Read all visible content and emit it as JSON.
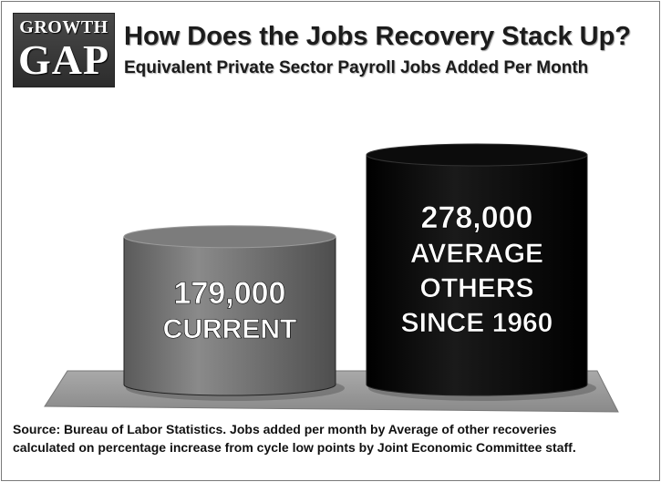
{
  "header": {
    "logo_line1": "GROWTH",
    "logo_line2": "GAP",
    "title": "How Does the Jobs Recovery Stack Up?",
    "subtitle": "Equivalent Private Sector Payroll Jobs Added Per Month"
  },
  "chart_data": {
    "type": "bar",
    "title": "How Does the Jobs Recovery Stack Up?",
    "subtitle": "Equivalent Private Sector Payroll Jobs Added Per Month",
    "categories": [
      "Current",
      "Average Others Since 1960"
    ],
    "values": [
      179000,
      278000
    ],
    "bars": [
      {
        "value_label": "179,000",
        "caption_lines": [
          "CURRENT"
        ],
        "color": "#6e6e6e"
      },
      {
        "value_label": "278,000",
        "caption_lines": [
          "AVERAGE",
          "OTHERS",
          "SINCE 1960"
        ],
        "color": "#080808"
      }
    ],
    "ylim": [
      0,
      278000
    ],
    "grid": false,
    "style": "3d-cylinders"
  },
  "source": {
    "line1": "Source:  Bureau of Labor Statistics.  Jobs added per month by Average of other recoveries",
    "line2": "calculated on percentage increase from cycle low points by Joint Economic Committee staff."
  }
}
